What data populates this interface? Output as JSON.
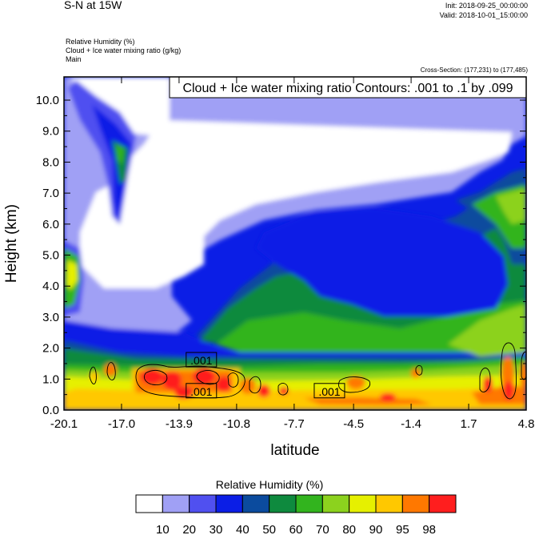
{
  "header": {
    "title": "S-N at 15W",
    "init": "Init: 2018-09-25_00:00:00",
    "valid": "Valid: 2018-10-01_15:00:00",
    "field1": "Relative Humidity   (%)",
    "field2": "Cloud + Ice water mixing ratio   (g/kg)",
    "field3": "Main",
    "cross_section": "Cross-Section: (177,231) to (177,485)"
  },
  "chart_data": {
    "type": "heatmap",
    "title": "S-N at 15W",
    "xlabel": "latitude",
    "ylabel": "Height (km)",
    "x_ticks": [
      "-20.1",
      "-17.0",
      "-13.9",
      "-10.8",
      "-7.7",
      "-4.5",
      "-1.4",
      "1.7",
      "4.8"
    ],
    "x_tick_values": [
      -20.1,
      -17.0,
      -13.9,
      -10.8,
      -7.7,
      -4.5,
      -1.4,
      1.7,
      4.8
    ],
    "y_ticks": [
      "0.0",
      "1.0",
      "2.0",
      "3.0",
      "4.0",
      "5.0",
      "6.0",
      "7.0",
      "8.0",
      "9.0",
      "10.0"
    ],
    "y_tick_values": [
      0,
      1,
      2,
      3,
      4,
      5,
      6,
      7,
      8,
      9,
      10
    ],
    "xlim": [
      -20.1,
      4.8
    ],
    "ylim": [
      0,
      10.75
    ],
    "contour_annotation": "Cloud + Ice water mixing ratio Contours: .001 to .1 by .099",
    "contour_labels": [
      {
        "text": ".001",
        "x": -12.7,
        "y": 1.6
      },
      {
        "text": ".001",
        "x": -12.7,
        "y": 0.6
      },
      {
        "text": ".001",
        "x": -5.8,
        "y": 0.6
      }
    ],
    "colorbar": {
      "title": "Relative Humidity  (%)",
      "levels": [
        "10",
        "20",
        "30",
        "40",
        "50",
        "60",
        "70",
        "80",
        "90",
        "95",
        "98"
      ],
      "colors": [
        "#ffffff",
        "#a0a0f5",
        "#5050f0",
        "#0b1ee6",
        "#0b4b9e",
        "#0e8a3e",
        "#32b41e",
        "#8cd21e",
        "#e6f000",
        "#ffc800",
        "#ff7800",
        "#ff1e1e"
      ]
    }
  }
}
